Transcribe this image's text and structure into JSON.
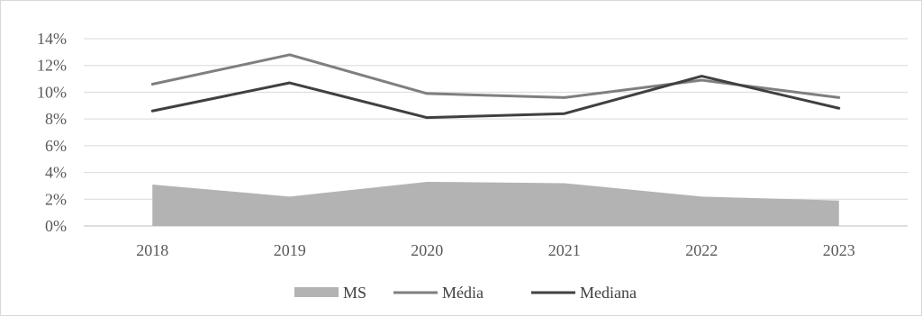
{
  "chart_data": {
    "type": "line",
    "categories": [
      "2018",
      "2019",
      "2020",
      "2021",
      "2022",
      "2023"
    ],
    "y_ticks": [
      "0%",
      "2%",
      "4%",
      "6%",
      "8%",
      "10%",
      "12%",
      "14%"
    ],
    "ylim": [
      0,
      14
    ],
    "grid": true,
    "legend_position": "bottom",
    "series": [
      {
        "name": "MS",
        "render": "area",
        "color": "#b3b3b3",
        "values": [
          3.1,
          2.2,
          3.3,
          3.2,
          2.2,
          1.9
        ]
      },
      {
        "name": "Média",
        "render": "line",
        "color": "#7f7f7f",
        "values": [
          10.6,
          12.8,
          9.9,
          9.6,
          10.9,
          9.6
        ]
      },
      {
        "name": "Mediana",
        "render": "line",
        "color": "#404040",
        "values": [
          8.6,
          10.7,
          8.1,
          8.4,
          11.2,
          8.8
        ]
      }
    ]
  }
}
